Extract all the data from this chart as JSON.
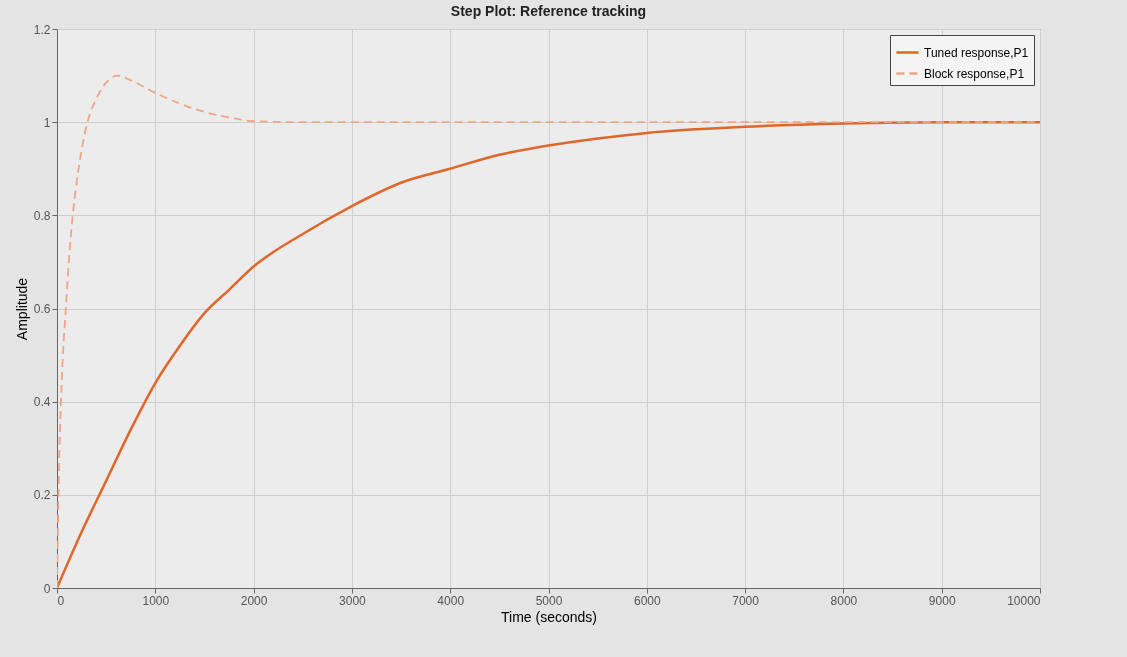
{
  "chart_data": {
    "type": "line",
    "title": "Step Plot: Reference tracking",
    "xlabel": "Time (seconds)",
    "ylabel": "Amplitude",
    "xlim": [
      0,
      10000
    ],
    "xticks": [
      0,
      1000,
      2000,
      3000,
      4000,
      5000,
      6000,
      7000,
      8000,
      9000,
      10000
    ],
    "ylim": [
      0,
      1.2
    ],
    "yticks": [
      0,
      0.2,
      0.4,
      0.6,
      0.8,
      1,
      1.2
    ],
    "grid": true,
    "legend": "top right",
    "marker": "none",
    "series": [
      {
        "name": "Tuned response,P1",
        "color": "#e0662a",
        "line_style": "solid",
        "x": [
          0,
          250,
          500,
          750,
          1000,
          1250,
          1500,
          1750,
          2000,
          2500,
          3000,
          3500,
          4000,
          4500,
          5000,
          5500,
          6000,
          7000,
          8000,
          9000,
          10000
        ],
        "values": [
          0,
          0.12,
          0.23,
          0.34,
          0.44,
          0.52,
          0.59,
          0.64,
          0.69,
          0.76,
          0.82,
          0.87,
          0.9,
          0.93,
          0.95,
          0.965,
          0.977,
          0.99,
          0.997,
          1,
          1
        ]
      },
      {
        "name": "Block response,P1",
        "color": "#f0a585",
        "line_style": "dashed",
        "x": [
          0,
          20,
          40,
          60,
          90,
          120,
          160,
          200,
          250,
          310,
          400,
          500,
          615,
          750,
          1000,
          1250,
          1500,
          1750,
          2000,
          2500,
          3000,
          4000,
          6000,
          8000,
          10000
        ],
        "values": [
          0,
          0.25,
          0.4,
          0.5,
          0.6,
          0.7,
          0.8,
          0.87,
          0.94,
          1,
          1.05,
          1.085,
          1.1,
          1.09,
          1.063,
          1.04,
          1.022,
          1.01,
          1.002,
          1,
          1,
          1,
          1,
          1,
          1
        ]
      }
    ]
  }
}
